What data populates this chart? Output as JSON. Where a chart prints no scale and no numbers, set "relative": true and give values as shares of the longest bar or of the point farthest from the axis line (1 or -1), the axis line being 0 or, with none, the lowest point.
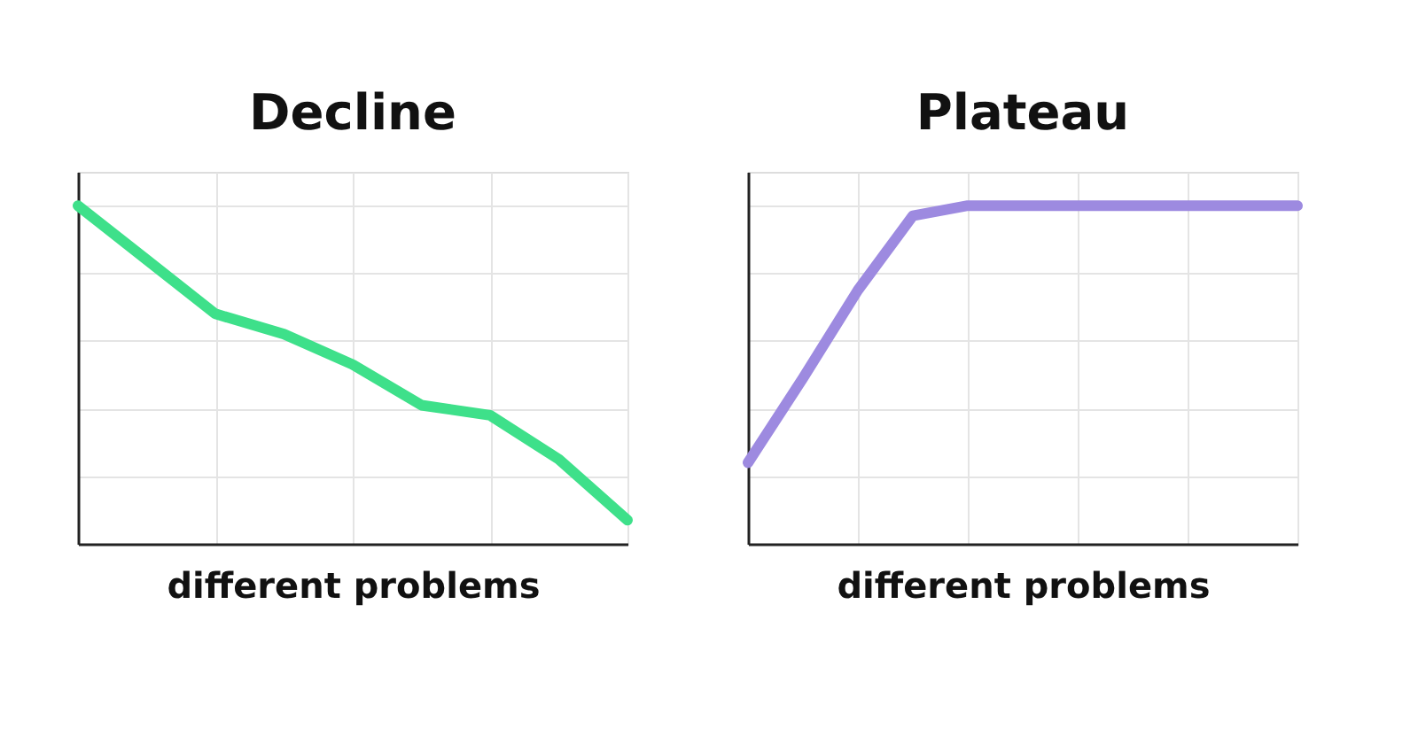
{
  "chart_data": [
    {
      "type": "line",
      "title": "Decline",
      "xlabel": "different problems",
      "relative": true,
      "grid": true,
      "categories": [
        null,
        null,
        null,
        null,
        null,
        null,
        null,
        null,
        null
      ],
      "series": [
        {
          "color": "#3ee08a",
          "values": [
            1.0,
            0.84,
            0.68,
            0.62,
            0.53,
            0.41,
            0.38,
            0.25,
            0.07
          ]
        }
      ]
    },
    {
      "type": "line",
      "title": "Plateau",
      "xlabel": "different problems",
      "relative": true,
      "grid": true,
      "categories": [
        null,
        null,
        null,
        null,
        null,
        null,
        null,
        null,
        null,
        null,
        null
      ],
      "series": [
        {
          "color": "#9d8ae0",
          "values": [
            0.24,
            0.49,
            0.75,
            0.97,
            1.0,
            1.0,
            1.0,
            1.0,
            1.0,
            1.0,
            1.0
          ]
        }
      ]
    }
  ]
}
